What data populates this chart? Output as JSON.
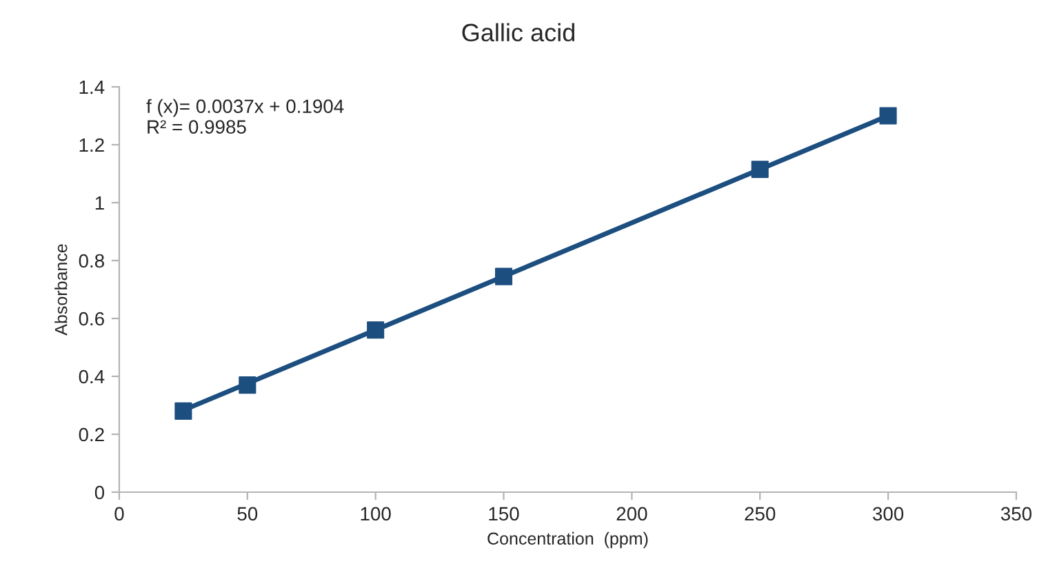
{
  "chart_data": {
    "type": "scatter",
    "title": "Gallic acid",
    "xlabel": "Concentration  (ppm)",
    "ylabel": "Absorbance",
    "x": [
      25,
      50,
      100,
      150,
      250,
      300
    ],
    "series": [
      {
        "color": "#1c4e80",
        "marker": "square",
        "values": [
          0.28,
          0.37,
          0.56,
          0.745,
          1.115,
          1.3
        ]
      },
      {
        "type": "line",
        "color": "#1c4e80",
        "x": [
          25,
          300
        ],
        "values": [
          0.283,
          1.3
        ],
        "line_style": "solid"
      }
    ],
    "xlim": [
      0,
      350
    ],
    "xticks": [
      0,
      50,
      100,
      150,
      200,
      250,
      300,
      350
    ],
    "ylim": [
      0,
      1.4
    ],
    "yticks": [
      0,
      0.2,
      0.4,
      0.6,
      0.8,
      1,
      1.2,
      1.4
    ],
    "annotations": [
      "f (x)= 0.0037x + 0.1904\nR² = 0.9985"
    ],
    "grid": false,
    "legend": false
  }
}
